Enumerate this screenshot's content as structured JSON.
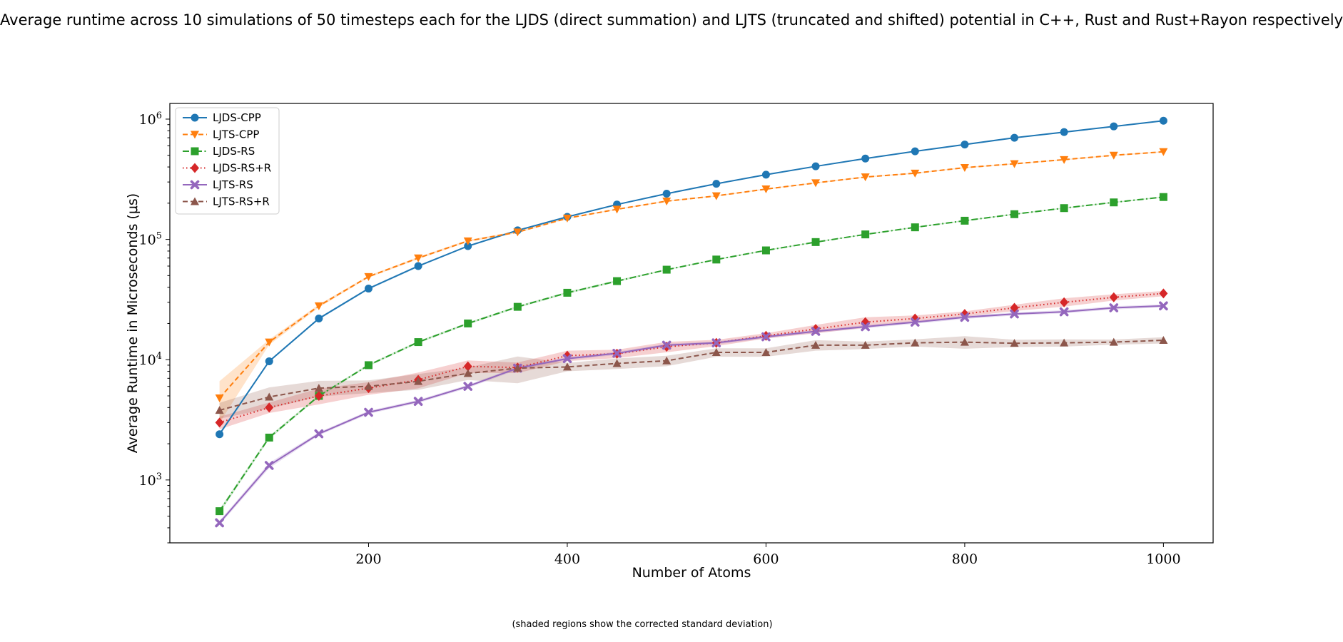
{
  "chart_data": {
    "type": "line",
    "title": "Average runtime across 10 simulations of 50 timesteps each for the LJDS (direct summation) and LJTS (truncated and shifted) potential in C++, Rust and Rust+Rayon respectively",
    "footnote": "(shaded regions show the corrected standard deviation)",
    "xlabel": "Number of Atoms",
    "ylabel": "Average Runtime in Microseconds (μs)",
    "y_scale": "log",
    "xlim": [
      0,
      1050
    ],
    "ylim": [
      300,
      1350000
    ],
    "x_ticks": [
      200,
      400,
      600,
      800,
      1000
    ],
    "y_ticks": [
      {
        "value": 1000,
        "base": "10",
        "exp": "3"
      },
      {
        "value": 10000,
        "base": "10",
        "exp": "4"
      },
      {
        "value": 100000,
        "base": "10",
        "exp": "5"
      },
      {
        "value": 1000000,
        "base": "10",
        "exp": "6"
      }
    ],
    "grid": false,
    "legend_position": "top-left",
    "x": [
      50,
      100,
      150,
      200,
      250,
      300,
      350,
      400,
      450,
      500,
      550,
      600,
      650,
      700,
      750,
      800,
      850,
      900,
      950,
      1000
    ],
    "series": [
      {
        "name": "LJDS-CPP",
        "color": "#1f77b4",
        "marker": "circle",
        "dash": "solid",
        "values": [
          2400,
          9700,
          22000,
          39000,
          60000,
          88000,
          119000,
          154000,
          195000,
          240000,
          290000,
          345000,
          405000,
          470000,
          540000,
          615000,
          700000,
          780000,
          870000,
          970000
        ],
        "err_frac": [
          0.03,
          0.02,
          0.02,
          0.02,
          0.02,
          0.01,
          0.01,
          0.01,
          0.01,
          0.01,
          0.01,
          0.01,
          0.01,
          0.01,
          0.01,
          0.01,
          0.01,
          0.01,
          0.01,
          0.01
        ]
      },
      {
        "name": "LJTS-CPP",
        "color": "#ff7f0e",
        "marker": "triangle-down",
        "dash": "dashed",
        "values": [
          4800,
          14000,
          28000,
          49000,
          70000,
          97000,
          115000,
          150000,
          178000,
          208000,
          230000,
          262000,
          295000,
          330000,
          355000,
          395000,
          425000,
          460000,
          500000,
          535000
        ],
        "err_frac": [
          0.38,
          0.05,
          0.03,
          0.02,
          0.02,
          0.02,
          0.02,
          0.01,
          0.01,
          0.01,
          0.01,
          0.01,
          0.01,
          0.01,
          0.01,
          0.01,
          0.01,
          0.01,
          0.01,
          0.01
        ]
      },
      {
        "name": "LJDS-RS",
        "color": "#2ca02c",
        "marker": "square",
        "dash": "dashdot",
        "values": [
          550,
          2250,
          5000,
          9000,
          14000,
          20000,
          27500,
          36000,
          45000,
          56000,
          68000,
          81000,
          95000,
          110000,
          126000,
          143000,
          162000,
          182000,
          203000,
          225000
        ],
        "err_frac": [
          0.04,
          0.03,
          0.02,
          0.02,
          0.02,
          0.02,
          0.02,
          0.02,
          0.02,
          0.01,
          0.01,
          0.01,
          0.01,
          0.01,
          0.01,
          0.01,
          0.01,
          0.01,
          0.01,
          0.01
        ]
      },
      {
        "name": "LJDS-RS+R",
        "color": "#d62728",
        "marker": "diamond",
        "dash": "dotted",
        "values": [
          3000,
          4000,
          5000,
          5800,
          6800,
          8800,
          8600,
          10800,
          11200,
          12800,
          13800,
          15800,
          18000,
          20500,
          22000,
          24000,
          27000,
          30000,
          33000,
          35500
        ],
        "err_frac": [
          0.12,
          0.1,
          0.15,
          0.12,
          0.15,
          0.12,
          0.1,
          0.1,
          0.08,
          0.1,
          0.06,
          0.05,
          0.08,
          0.1,
          0.06,
          0.05,
          0.06,
          0.08,
          0.06,
          0.05
        ]
      },
      {
        "name": "LJTS-RS",
        "color": "#9467bd",
        "marker": "x",
        "dash": "solid",
        "values": [
          440,
          1320,
          2420,
          3650,
          4500,
          6000,
          8500,
          10200,
          11300,
          13200,
          13800,
          15500,
          17200,
          18800,
          20500,
          22500,
          24000,
          25000,
          27000,
          28000
        ],
        "err_frac": [
          0.04,
          0.05,
          0.03,
          0.03,
          0.03,
          0.03,
          0.03,
          0.03,
          0.03,
          0.03,
          0.03,
          0.03,
          0.03,
          0.03,
          0.03,
          0.03,
          0.03,
          0.03,
          0.03,
          0.03
        ]
      },
      {
        "name": "LJTS-RS+R",
        "color": "#8c564b",
        "marker": "triangle-up",
        "dash": "dashed",
        "values": [
          3800,
          4900,
          5800,
          6000,
          6600,
          7700,
          8500,
          8700,
          9300,
          9800,
          11500,
          11500,
          13200,
          13200,
          13800,
          14000,
          13700,
          13800,
          14000,
          14500
        ],
        "err_frac": [
          0.15,
          0.2,
          0.15,
          0.12,
          0.15,
          0.12,
          0.25,
          0.08,
          0.1,
          0.1,
          0.08,
          0.08,
          0.1,
          0.07,
          0.07,
          0.12,
          0.07,
          0.07,
          0.05,
          0.06
        ]
      }
    ]
  }
}
